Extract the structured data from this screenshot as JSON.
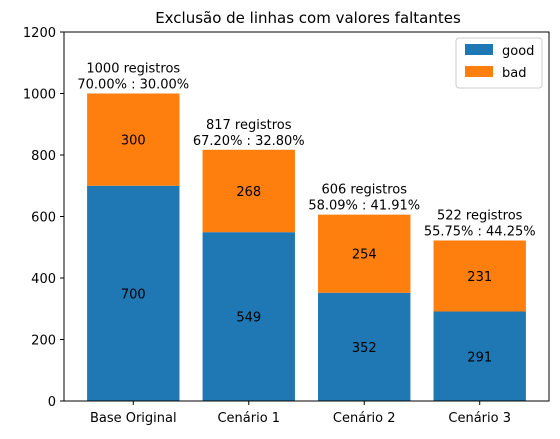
{
  "chart_data": {
    "type": "bar",
    "stacked": true,
    "title": "Exclusão de linhas com valores faltantes",
    "xlabel": "",
    "ylabel": "",
    "ylim": [
      0,
      1200
    ],
    "yticks": [
      0,
      200,
      400,
      600,
      800,
      1000,
      1200
    ],
    "grid": false,
    "legend_position": "top-right",
    "categories": [
      "Base Original",
      "Cenário 1",
      "Cenário 2",
      "Cenário 3"
    ],
    "series": [
      {
        "name": "good",
        "color": "#1f77b4",
        "values": [
          700,
          549,
          352,
          291
        ]
      },
      {
        "name": "bad",
        "color": "#ff7f0e",
        "values": [
          300,
          268,
          254,
          231
        ]
      }
    ],
    "annotations": [
      {
        "line1": "1000 registros",
        "line2": "70.00% : 30.00%"
      },
      {
        "line1": "817 registros",
        "line2": "67.20% : 32.80%"
      },
      {
        "line1": "606 registros",
        "line2": "58.09% : 41.91%"
      },
      {
        "line1": "522 registros",
        "line2": "55.75% : 44.25%"
      }
    ]
  }
}
